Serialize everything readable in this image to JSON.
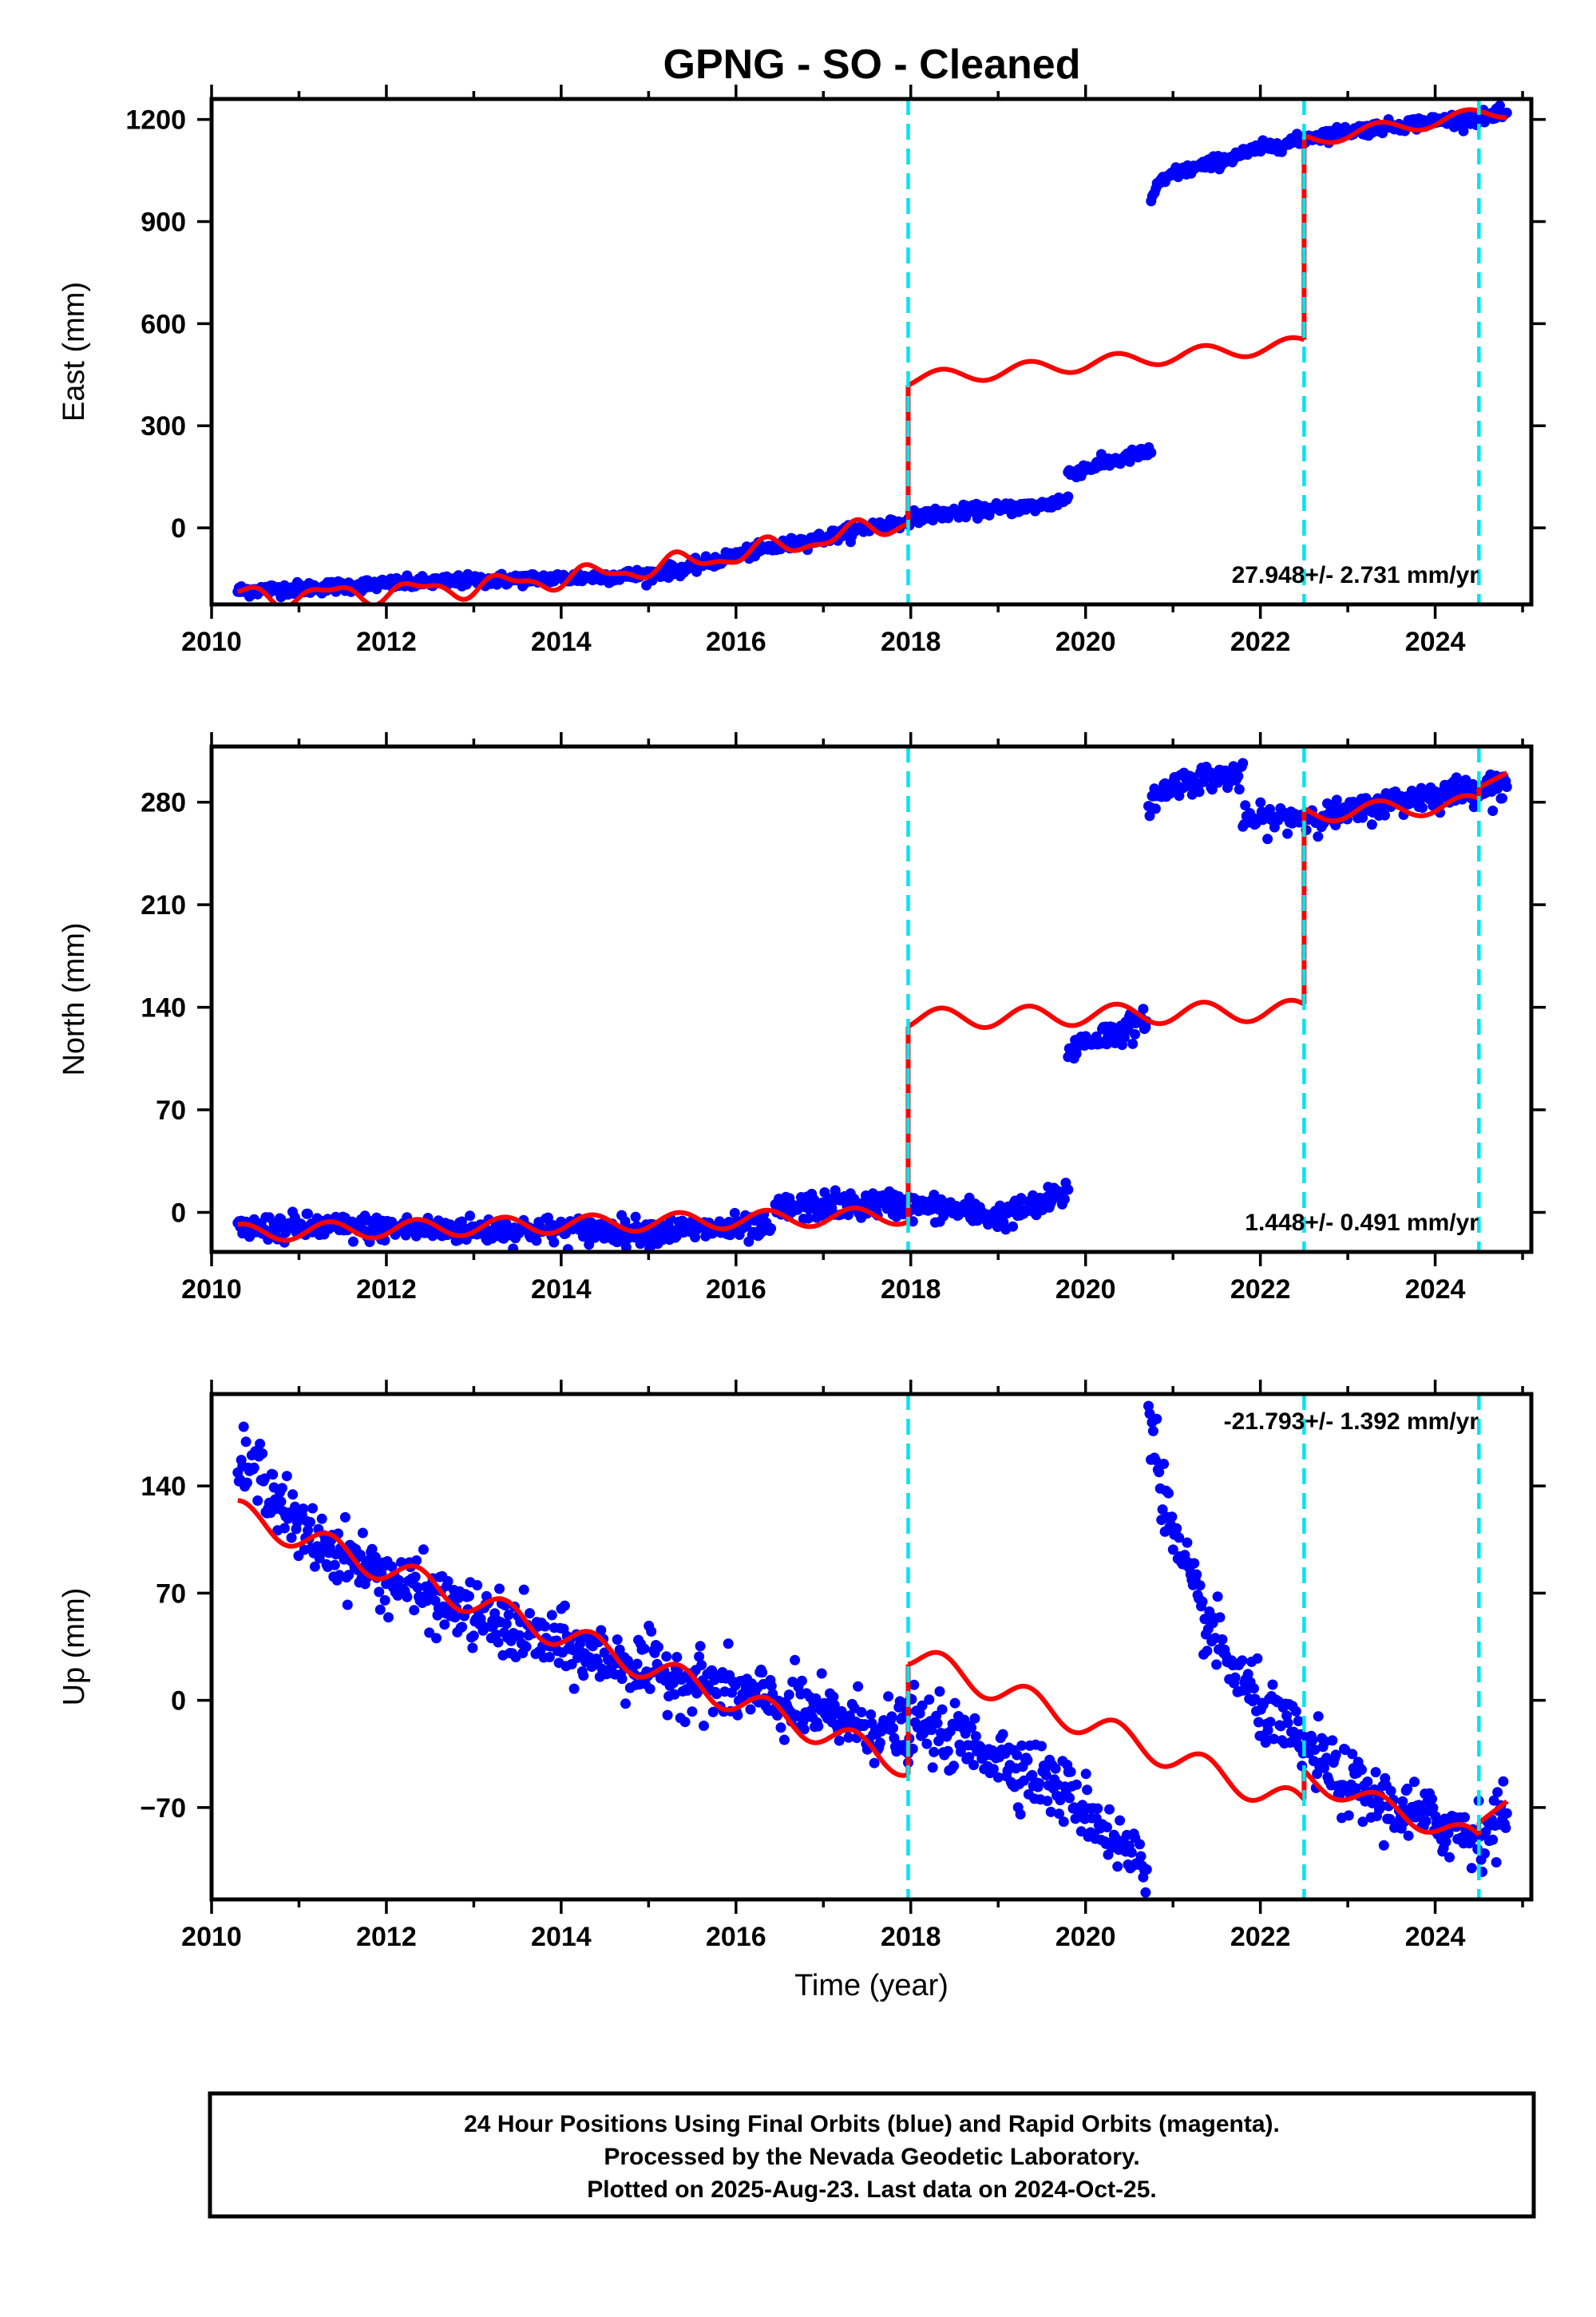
{
  "title": "GPNG  - SO - Cleaned",
  "colors": {
    "data_points": "#0000ff",
    "model_line": "#ff0000",
    "offset_lines": "#00e5ee",
    "frame": "#000000"
  },
  "chart_data": [
    {
      "type": "scatter",
      "name": "East",
      "ylabel": "East (mm)",
      "xlabel": "",
      "xlim": [
        2010.0,
        2025.1
      ],
      "ylim": [
        -225,
        1260
      ],
      "xticks": [
        2010,
        2012,
        2014,
        2016,
        2018,
        2020,
        2022,
        2024
      ],
      "yticks": [
        0,
        300,
        600,
        900,
        1200
      ],
      "ytick_labels": [
        "0",
        "300",
        "600",
        "900",
        "1200"
      ],
      "rate_text": "27.948+/- 2.731 mm/yr",
      "offset_epochs": [
        2017.97,
        2022.5,
        2024.5
      ],
      "observed_segments": [
        {
          "x": [
            2010.3,
            2011.0,
            2012.0,
            2013.0,
            2014.0,
            2015.0,
            2015.5,
            2016.0,
            2016.5,
            2017.0,
            2017.5,
            2017.9
          ],
          "y": [
            -185,
            -178,
            -165,
            -155,
            -148,
            -138,
            -115,
            -80,
            -55,
            -30,
            0,
            20
          ]
        },
        {
          "x": [
            2017.97,
            2018.5,
            2019.0,
            2019.5,
            2019.8
          ],
          "y": [
            30,
            45,
            55,
            65,
            85
          ]
        },
        {
          "x": [
            2019.8,
            2020.0,
            2020.3,
            2020.6,
            2020.75
          ],
          "y": [
            160,
            175,
            195,
            215,
            225
          ]
        },
        {
          "x": [
            2020.75,
            2020.8,
            2021.0,
            2021.5,
            2022.0,
            2022.5
          ],
          "y": [
            960,
            1000,
            1040,
            1075,
            1115,
            1140
          ]
        },
        {
          "x": [
            2022.5,
            2023.0,
            2023.5,
            2024.0,
            2024.5,
            2024.82
          ],
          "y": [
            1145,
            1165,
            1180,
            1195,
            1205,
            1215
          ]
        }
      ],
      "model_segments": [
        {
          "x0": 2010.3,
          "y0": -200,
          "x1": 2017.97,
          "y1": 20,
          "curve": 2.0,
          "amp": 25,
          "noise": 12
        },
        {
          "x0": 2017.97,
          "y0": 435,
          "x1": 2022.5,
          "y1": 540,
          "curve": 1.0,
          "amp": 22,
          "noise": 0
        },
        {
          "x0": 2022.5,
          "y0": 1140,
          "x1": 2024.82,
          "y1": 1225,
          "curve": 1.0,
          "amp": 20,
          "noise": 0
        }
      ]
    },
    {
      "type": "scatter",
      "name": "North",
      "ylabel": "North (mm)",
      "xlabel": "",
      "xlim": [
        2010.0,
        2025.1
      ],
      "ylim": [
        -27,
        318
      ],
      "xticks": [
        2010,
        2012,
        2014,
        2016,
        2018,
        2020,
        2022,
        2024
      ],
      "yticks": [
        0,
        70,
        140,
        210,
        280
      ],
      "ytick_labels": [
        "0",
        "70",
        "140",
        "210",
        "280"
      ],
      "rate_text": "1.448+/- 0.491 mm/yr",
      "offset_epochs": [
        2017.97,
        2022.5,
        2024.5
      ],
      "observed_segments": [
        {
          "x": [
            2010.3,
            2011.0,
            2012.0,
            2013.0,
            2014.0,
            2015.0,
            2016.0,
            2016.4
          ],
          "y": [
            -12,
            -10,
            -11,
            -12,
            -12,
            -13,
            -11,
            -12
          ]
        },
        {
          "x": [
            2016.45,
            2017.0,
            2017.5,
            2017.97
          ],
          "y": [
            2,
            5,
            5,
            6
          ]
        },
        {
          "x": [
            2017.97,
            2018.5,
            2019.0,
            2019.5,
            2019.8
          ],
          "y": [
            4,
            2,
            -3,
            5,
            14
          ]
        },
        {
          "x": [
            2019.8,
            2020.0,
            2020.3,
            2020.7
          ],
          "y": [
            110,
            117,
            122,
            130
          ]
        },
        {
          "x": [
            2020.72,
            2021.0,
            2021.5,
            2021.8
          ],
          "y": [
            280,
            292,
            298,
            297
          ]
        },
        {
          "x": [
            2021.8,
            2022.0,
            2022.5,
            2023.0,
            2023.5,
            2024.0,
            2024.5,
            2024.82
          ],
          "y": [
            268,
            268,
            270,
            272,
            280,
            285,
            290,
            292
          ]
        }
      ],
      "model_segments": [
        {
          "x0": 2010.3,
          "y0": -14,
          "x1": 2017.97,
          "y1": -2,
          "curve": 1.0,
          "amp": 6,
          "noise": 0
        },
        {
          "x0": 2017.97,
          "y0": 132,
          "x1": 2022.5,
          "y1": 138,
          "curve": 1.0,
          "amp": 7,
          "noise": 0
        },
        {
          "x0": 2022.5,
          "y0": 272,
          "x1": 2024.5,
          "y1": 279,
          "curve": 1.0,
          "amp": 6,
          "noise": 0
        },
        {
          "x0": 2024.5,
          "y0": 290,
          "x1": 2024.82,
          "y1": 300,
          "curve": 1.0,
          "amp": 0,
          "noise": 0
        }
      ]
    },
    {
      "type": "scatter",
      "name": "Up",
      "ylabel": "Up (mm)",
      "xlabel": "Time (year)",
      "xlim": [
        2010.0,
        2025.1
      ],
      "ylim": [
        -130,
        200
      ],
      "xticks": [
        2010,
        2012,
        2014,
        2016,
        2018,
        2020,
        2022,
        2024
      ],
      "yticks": [
        -70,
        0,
        70,
        140
      ],
      "ytick_labels": [
        "−70",
        "0",
        "70",
        "140"
      ],
      "rate_text": "-21.793+/- 1.392 mm/yr",
      "offset_epochs": [
        2017.97,
        2022.5,
        2024.5
      ],
      "observed_segments": [
        {
          "x": [
            2010.3,
            2010.6,
            2011.0,
            2011.5,
            2012.0,
            2013.0,
            2014.0,
            2015.0,
            2016.0,
            2017.0,
            2017.97
          ],
          "y": [
            152,
            148,
            110,
            95,
            80,
            55,
            35,
            20,
            5,
            -10,
            -22
          ]
        },
        {
          "x": [
            2017.97,
            2018.5,
            2019.0,
            2019.5,
            2020.0,
            2020.4,
            2020.7
          ],
          "y": [
            -15,
            -25,
            -35,
            -50,
            -70,
            -95,
            -110
          ]
        },
        {
          "x": [
            2020.72,
            2020.8,
            2021.0,
            2021.3,
            2021.6,
            2022.0,
            2022.5,
            2023.0,
            2023.5,
            2024.0,
            2024.5,
            2024.82
          ],
          "y": [
            190,
            165,
            105,
            60,
            28,
            -5,
            -30,
            -55,
            -70,
            -80,
            -88,
            -75
          ]
        }
      ],
      "model_segments": [
        {
          "x0": 2010.3,
          "y0": 122,
          "x1": 2017.97,
          "y1": -42,
          "curve": 1.0,
          "amp": 9,
          "noise": 0
        },
        {
          "x0": 2017.97,
          "y0": 30,
          "x1": 2022.5,
          "y1": -70,
          "curve": 1.0,
          "amp": 9,
          "noise": 0
        },
        {
          "x0": 2022.5,
          "y0": -50,
          "x1": 2024.5,
          "y1": -92,
          "curve": 1.0,
          "amp": 7,
          "noise": 0
        },
        {
          "x0": 2024.5,
          "y0": -80,
          "x1": 2024.82,
          "y1": -66,
          "curve": 1.0,
          "amp": 0,
          "noise": 0
        }
      ]
    }
  ],
  "footer": {
    "line1": "24 Hour Positions Using Final Orbits (blue) and Rapid Orbits (magenta).",
    "line2": "Processed by the Nevada Geodetic Laboratory.",
    "line3": "Plotted on 2025-Aug-23. Last data on 2024-Oct-25."
  }
}
